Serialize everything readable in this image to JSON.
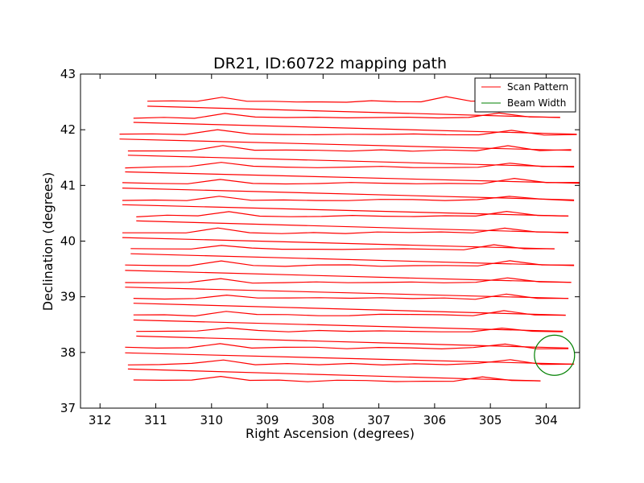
{
  "chart_data": {
    "type": "line",
    "title": "DR21, ID:60722 mapping path",
    "xlabel": "Right Ascension (degrees)",
    "ylabel": "Declination (degrees)",
    "xlim": [
      312.35,
      303.4
    ],
    "ylim": [
      37,
      43
    ],
    "x_inverted": true,
    "xticks": [
      "312",
      "311",
      "310",
      "309",
      "308",
      "307",
      "306",
      "305",
      "304"
    ],
    "yticks": [
      "37",
      "38",
      "39",
      "40",
      "41",
      "42",
      "43"
    ],
    "grid": false,
    "legend": {
      "placement": "top-right",
      "entries": [
        "Scan Pattern",
        "Beam Width"
      ]
    },
    "series": [
      {
        "name": "Scan Pattern",
        "color": "#ff0000",
        "scan_rows": [
          {
            "dec": 37.49,
            "ra_start": 311.4,
            "ra_end": 304.1
          },
          {
            "dec": 37.79,
            "ra_start": 311.5,
            "ra_end": 303.5
          },
          {
            "dec": 38.08,
            "ra_start": 311.55,
            "ra_end": 303.6
          },
          {
            "dec": 38.38,
            "ra_start": 311.35,
            "ra_end": 303.7
          },
          {
            "dec": 38.67,
            "ra_start": 311.4,
            "ra_end": 303.65
          },
          {
            "dec": 38.97,
            "ra_start": 311.4,
            "ra_end": 303.6
          },
          {
            "dec": 39.26,
            "ra_start": 311.55,
            "ra_end": 303.55
          },
          {
            "dec": 39.56,
            "ra_start": 311.55,
            "ra_end": 303.5
          },
          {
            "dec": 39.86,
            "ra_start": 311.45,
            "ra_end": 303.85
          },
          {
            "dec": 40.15,
            "ra_start": 311.6,
            "ra_end": 303.6
          },
          {
            "dec": 40.45,
            "ra_start": 311.35,
            "ra_end": 303.6
          },
          {
            "dec": 40.74,
            "ra_start": 311.6,
            "ra_end": 303.5
          },
          {
            "dec": 41.04,
            "ra_start": 311.6,
            "ra_end": 303.4
          },
          {
            "dec": 41.33,
            "ra_start": 311.55,
            "ra_end": 303.5
          },
          {
            "dec": 41.63,
            "ra_start": 311.5,
            "ra_end": 303.55
          },
          {
            "dec": 41.92,
            "ra_start": 311.65,
            "ra_end": 303.45
          },
          {
            "dec": 42.22,
            "ra_start": 311.4,
            "ra_end": 303.75
          },
          {
            "dec": 42.51,
            "ra_start": 311.15,
            "ra_end": 304.9
          }
        ]
      },
      {
        "name": "Beam Width",
        "color": "#008000",
        "shape": "circle",
        "center_ra": 303.85,
        "center_dec": 37.95,
        "radius_deg": 0.36
      }
    ]
  }
}
